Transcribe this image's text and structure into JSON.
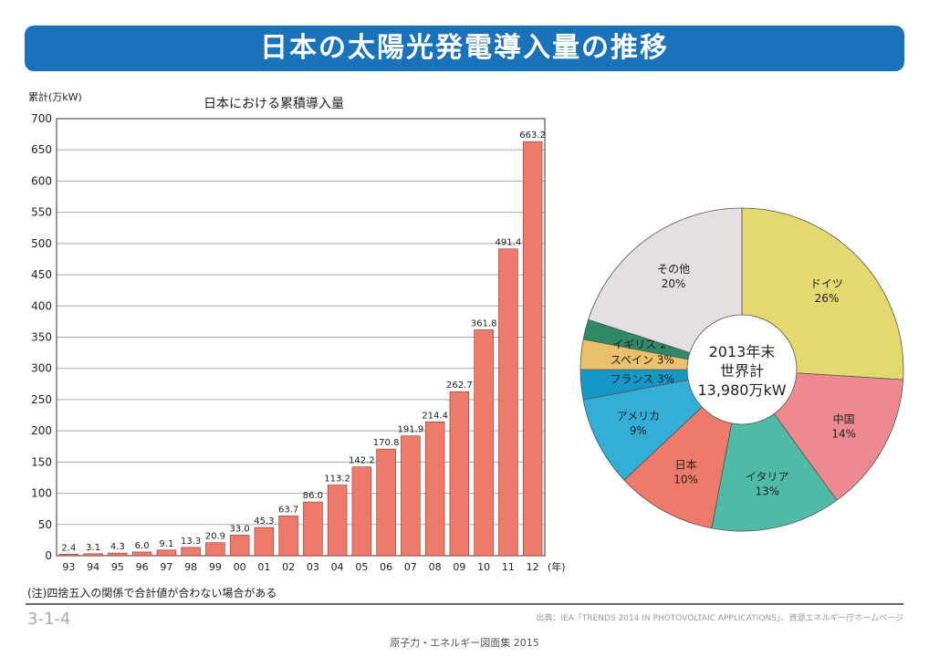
{
  "title": "日本の太陽光発電導入量の推移",
  "note": "(注)四捨五入の関係で合計値が合わない場合がある",
  "page_code": "3-1-4",
  "source": "出典：IEA「TRENDS 2014 IN PHOTOVOLTAIC APPLICATIONS」、資源エネルギー庁ホームページ",
  "footer": "原子力・エネルギー図面集 2015",
  "chart_data": [
    {
      "type": "bar",
      "title": "日本における累積導入量",
      "ylabel": "累計(万kW)",
      "xlabel": "(年)",
      "ylim": [
        0,
        700
      ],
      "yticks": [
        0,
        50,
        100,
        150,
        200,
        250,
        300,
        350,
        400,
        450,
        500,
        550,
        600,
        650,
        700
      ],
      "grid": true,
      "color": "#ee7a6b",
      "categories": [
        "93",
        "94",
        "95",
        "96",
        "97",
        "98",
        "99",
        "00",
        "01",
        "02",
        "03",
        "04",
        "05",
        "06",
        "07",
        "08",
        "09",
        "10",
        "11",
        "12"
      ],
      "values": [
        2.4,
        3.1,
        4.3,
        6.0,
        9.1,
        13.3,
        20.9,
        33.0,
        45.3,
        63.7,
        86.0,
        113.2,
        142.2,
        170.8,
        191.9,
        214.4,
        262.7,
        361.8,
        491.4,
        663.2
      ],
      "labels": [
        "2.4",
        "3.1",
        "4.3",
        "6.0",
        "9.1",
        "13.3",
        "20.9",
        "33.0",
        "45.3",
        "63.7",
        "86.0",
        "113.2",
        "142.2",
        "170.8",
        "191.9",
        "214.4",
        "262.7",
        "361.8",
        "491.4",
        "663.2"
      ]
    },
    {
      "type": "pie",
      "center_text": [
        "2013年末",
        "世界計",
        "13,980万kW"
      ],
      "slices": [
        {
          "name": "ドイツ",
          "value": 26,
          "label": "26%",
          "color": "#e3d96e"
        },
        {
          "name": "中国",
          "value": 14,
          "label": "14%",
          "color": "#ee8a8f"
        },
        {
          "name": "イタリア",
          "value": 13,
          "label": "13%",
          "color": "#4fbaa5"
        },
        {
          "name": "日本",
          "value": 10,
          "label": "10%",
          "color": "#ee7a6b"
        },
        {
          "name": "アメリカ",
          "value": 9,
          "label": "9%",
          "color": "#33aed6"
        },
        {
          "name": "フランス",
          "value": 3,
          "label": "3%",
          "color": "#1597c8"
        },
        {
          "name": "スペイン",
          "value": 3,
          "label": "3%",
          "color": "#ebc06a"
        },
        {
          "name": "イギリス",
          "value": 2,
          "label": "2%",
          "color": "#2e8a64"
        },
        {
          "name": "その他",
          "value": 20,
          "label": "20%",
          "color": "#e4dfe3"
        }
      ]
    }
  ]
}
